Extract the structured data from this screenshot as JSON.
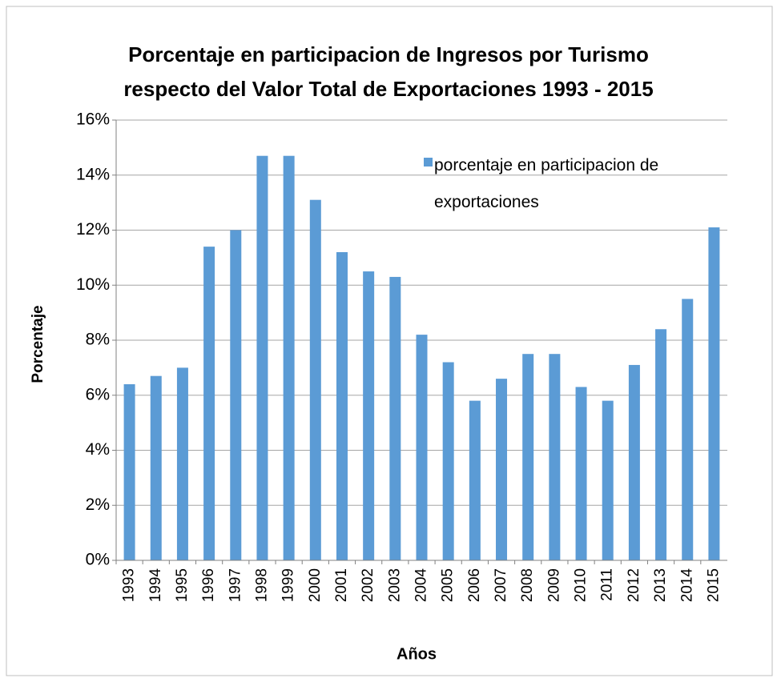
{
  "chart_data": {
    "type": "bar",
    "title": [
      "Porcentaje en participacion  de Ingresos por Turismo",
      "respecto del Valor Total de Exportaciones 1993 - 2015"
    ],
    "x_label": "Años",
    "y_label": "Porcentaje",
    "categories": [
      "1993",
      "1994",
      "1995",
      "1996",
      "1997",
      "1998",
      "1999",
      "2000",
      "2001",
      "2002",
      "2003",
      "2004",
      "2005",
      "2006",
      "2007",
      "2008",
      "2009",
      "2010",
      "2011",
      "2012",
      "2013",
      "2014",
      "2015"
    ],
    "series": [
      {
        "name": "porcentaje en participacion de exportaciones",
        "color": "#5b9bd5",
        "values": [
          6.4,
          6.7,
          7.0,
          11.4,
          12.0,
          14.7,
          14.7,
          13.1,
          11.2,
          10.5,
          10.3,
          8.2,
          7.2,
          5.8,
          6.6,
          7.5,
          7.5,
          6.3,
          5.8,
          7.1,
          8.4,
          9.5,
          12.1
        ]
      }
    ],
    "ylim": [
      0,
      16
    ],
    "yticks": [
      {
        "value": 0,
        "label": "0%"
      },
      {
        "value": 2,
        "label": "2%"
      },
      {
        "value": 4,
        "label": "4%"
      },
      {
        "value": 6,
        "label": "6%"
      },
      {
        "value": 8,
        "label": "8%"
      },
      {
        "value": 10,
        "label": "10%"
      },
      {
        "value": 12,
        "label": "12%"
      },
      {
        "value": 14,
        "label": "14%"
      },
      {
        "value": 16,
        "label": "16%"
      }
    ],
    "grid": true,
    "legend": "top-right"
  }
}
